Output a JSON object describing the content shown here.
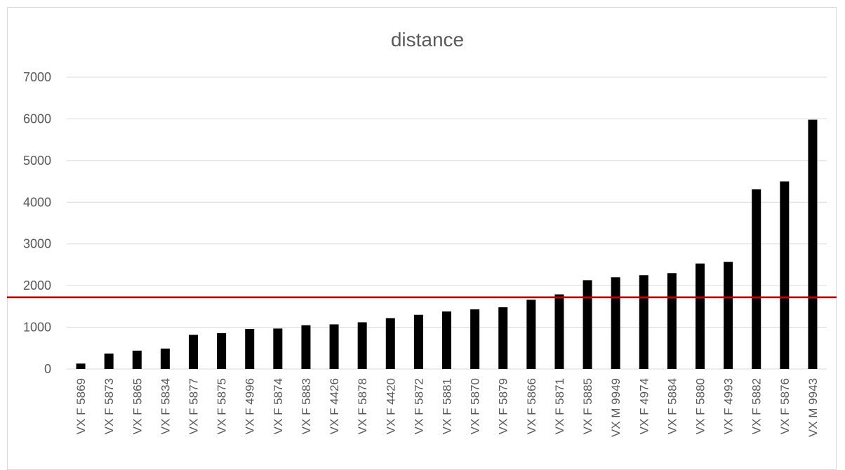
{
  "chart_data": {
    "type": "bar",
    "title": "distance",
    "xlabel": "",
    "ylabel": "",
    "ylim": [
      0,
      7000
    ],
    "yticks": [
      "0",
      "1000",
      "2000",
      "3000",
      "4000",
      "5000",
      "6000",
      "7000"
    ],
    "grid": true,
    "legend": "none",
    "bar_color": "#000000",
    "reference_line": {
      "value": 1720,
      "color": "#c00000"
    },
    "categories": [
      "VX F 5869",
      "VX F 5873",
      "VX F 5865",
      "VX F 5834",
      "VX F 5877",
      "VX F 5875",
      "VX F 4996",
      "VX F 5874",
      "VX F 5883",
      "VX F 4426",
      "VX F 5878",
      "VX F 4420",
      "VX F 5872",
      "VX F 5881",
      "VX F 5870",
      "VX F 5879",
      "VX F 5866",
      "VX F 5871",
      "VX F 5885",
      "VX M 9949",
      "VX F 4974",
      "VX F 5884",
      "VX F 5880",
      "VX F 4993",
      "VX F 5882",
      "VX F 5876",
      "VX M 9943"
    ],
    "values": [
      130,
      370,
      440,
      490,
      820,
      860,
      960,
      970,
      1050,
      1070,
      1120,
      1220,
      1300,
      1380,
      1430,
      1480,
      1660,
      1790,
      2130,
      2200,
      2250,
      2300,
      2530,
      2570,
      4310,
      4500,
      5980
    ]
  }
}
